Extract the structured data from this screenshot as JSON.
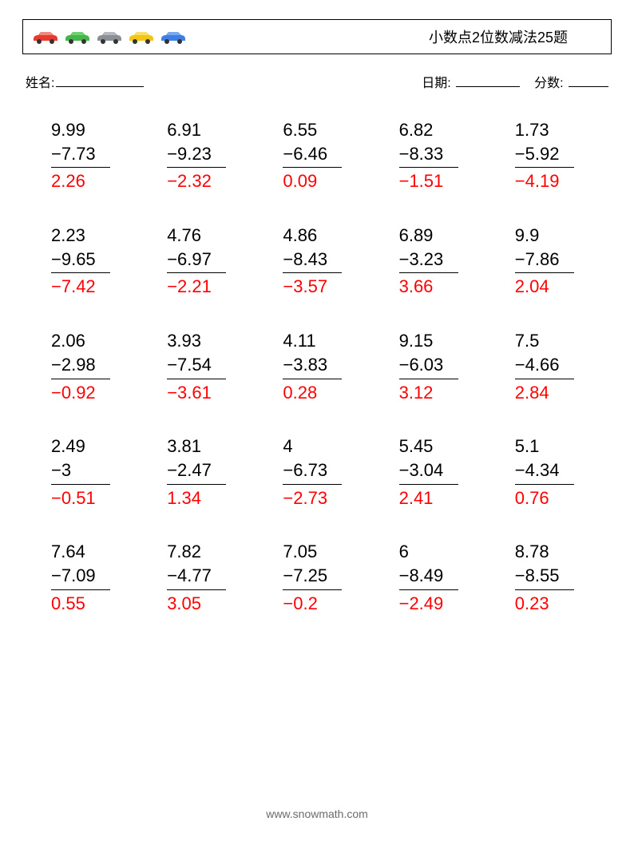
{
  "header": {
    "title": "小数点2位数减法25题",
    "cars": [
      {
        "body": "#e63b2e",
        "roof": "#f08b82",
        "wheel": "#333333"
      },
      {
        "body": "#45b64a",
        "roof": "#6fcf73",
        "wheel": "#333333"
      },
      {
        "body": "#8b8f96",
        "roof": "#b6bac0",
        "wheel": "#333333"
      },
      {
        "body": "#f3c614",
        "roof": "#f9de6a",
        "wheel": "#333333"
      },
      {
        "body": "#3f7fe2",
        "roof": "#7aa9ef",
        "wheel": "#333333"
      }
    ]
  },
  "meta": {
    "name_label": "姓名:",
    "date_label": "日期:",
    "score_label": "分数:"
  },
  "style": {
    "answer_color": "#ff0000",
    "text_color": "#000000",
    "footer_color": "#6b6b6b",
    "problem_fontsize": 22,
    "title_fontsize": 18,
    "meta_fontsize": 16,
    "footer_fontsize": 14,
    "grid_cols": 5,
    "grid_rows": 5
  },
  "problems": [
    {
      "minuend": "9.99",
      "subtrahend": "−7.73",
      "answer": "2.26"
    },
    {
      "minuend": "6.91",
      "subtrahend": "−9.23",
      "answer": "−2.32"
    },
    {
      "minuend": "6.55",
      "subtrahend": "−6.46",
      "answer": "0.09"
    },
    {
      "minuend": "6.82",
      "subtrahend": "−8.33",
      "answer": "−1.51"
    },
    {
      "minuend": "1.73",
      "subtrahend": "−5.92",
      "answer": "−4.19"
    },
    {
      "minuend": "2.23",
      "subtrahend": "−9.65",
      "answer": "−7.42"
    },
    {
      "minuend": "4.76",
      "subtrahend": "−6.97",
      "answer": "−2.21"
    },
    {
      "minuend": "4.86",
      "subtrahend": "−8.43",
      "answer": "−3.57"
    },
    {
      "minuend": "6.89",
      "subtrahend": "−3.23",
      "answer": "3.66"
    },
    {
      "minuend": "9.9",
      "subtrahend": "−7.86",
      "answer": "2.04"
    },
    {
      "minuend": "2.06",
      "subtrahend": "−2.98",
      "answer": "−0.92"
    },
    {
      "minuend": "3.93",
      "subtrahend": "−7.54",
      "answer": "−3.61"
    },
    {
      "minuend": "4.11",
      "subtrahend": "−3.83",
      "answer": "0.28"
    },
    {
      "minuend": "9.15",
      "subtrahend": "−6.03",
      "answer": "3.12"
    },
    {
      "minuend": "7.5",
      "subtrahend": "−4.66",
      "answer": "2.84"
    },
    {
      "minuend": "2.49",
      "subtrahend": "−3",
      "answer": "−0.51"
    },
    {
      "minuend": "3.81",
      "subtrahend": "−2.47",
      "answer": "1.34"
    },
    {
      "minuend": "4",
      "subtrahend": "−6.73",
      "answer": "−2.73"
    },
    {
      "minuend": "5.45",
      "subtrahend": "−3.04",
      "answer": "2.41"
    },
    {
      "minuend": "5.1",
      "subtrahend": "−4.34",
      "answer": "0.76"
    },
    {
      "minuend": "7.64",
      "subtrahend": "−7.09",
      "answer": "0.55"
    },
    {
      "minuend": "7.82",
      "subtrahend": "−4.77",
      "answer": "3.05"
    },
    {
      "minuend": "7.05",
      "subtrahend": "−7.25",
      "answer": "−0.2"
    },
    {
      "minuend": "6",
      "subtrahend": "−8.49",
      "answer": "−2.49"
    },
    {
      "minuend": "8.78",
      "subtrahend": "−8.55",
      "answer": "0.23"
    }
  ],
  "footer": {
    "url": "www.snowmath.com"
  }
}
